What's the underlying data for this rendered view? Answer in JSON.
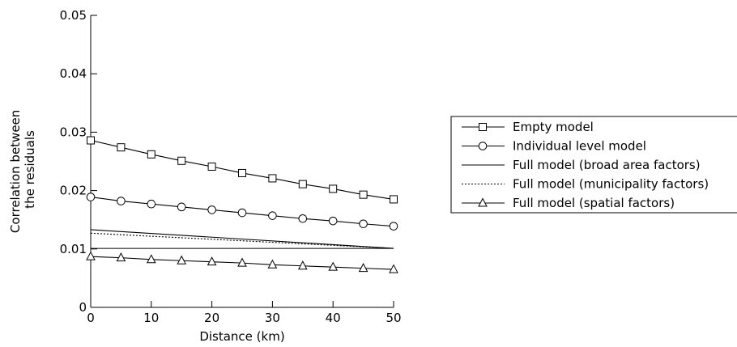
{
  "chart_data": {
    "type": "line",
    "title": "",
    "xlabel": "Distance (km)",
    "ylabel": "Correlation between the residuals",
    "ylabel_lines": [
      "Correlation between",
      "the residuals"
    ],
    "xlim": [
      0,
      50
    ],
    "ylim": [
      0,
      0.05
    ],
    "x_ticks": [
      0,
      10,
      20,
      30,
      40,
      50
    ],
    "x_tick_labels": [
      "0",
      "10",
      "20",
      "30",
      "40",
      "50"
    ],
    "y_ticks": [
      0,
      0.01,
      0.02,
      0.03,
      0.04,
      0.05
    ],
    "y_tick_labels": [
      "0",
      "0.01",
      "0.02",
      "0.03",
      "0.04",
      "0.05"
    ],
    "grid": false,
    "legend_position": "right",
    "series": [
      {
        "name": "Empty model",
        "marker": "square",
        "line_style": "solid",
        "x": [
          0,
          5,
          10,
          15,
          20,
          25,
          30,
          35,
          40,
          45,
          50
        ],
        "values": [
          0.0286,
          0.0274,
          0.0262,
          0.0251,
          0.0241,
          0.023,
          0.0221,
          0.0211,
          0.0203,
          0.0193,
          0.0185
        ]
      },
      {
        "name": "Individual level model",
        "marker": "circle",
        "line_style": "solid",
        "x": [
          0,
          5,
          10,
          15,
          20,
          25,
          30,
          35,
          40,
          45,
          50
        ],
        "values": [
          0.0189,
          0.0182,
          0.0177,
          0.0172,
          0.0167,
          0.0162,
          0.0157,
          0.0152,
          0.0148,
          0.0143,
          0.0139
        ]
      },
      {
        "name": "Full model (broad area factors)",
        "marker": "none",
        "line_style": "solid",
        "x": [
          0,
          50
        ],
        "values": [
          0.0133,
          0.0101
        ]
      },
      {
        "name": "Full model (municipality factors)",
        "marker": "none",
        "line_style": "dotted",
        "x": [
          0,
          50
        ],
        "values": [
          0.0127,
          0.0101
        ]
      },
      {
        "name": "Full model (spatial factors)",
        "marker": "triangle",
        "line_style": "solid",
        "x": [
          0,
          5,
          10,
          15,
          20,
          25,
          30,
          35,
          40,
          45,
          50
        ],
        "values": [
          0.0087,
          0.0085,
          0.0082,
          0.008,
          0.0078,
          0.0076,
          0.0073,
          0.0071,
          0.0069,
          0.0067,
          0.0065
        ]
      }
    ],
    "reference_lines": [
      {
        "x": [
          0,
          50
        ],
        "values": [
          0.0101,
          0.0101
        ],
        "line_style": "solid"
      }
    ]
  }
}
